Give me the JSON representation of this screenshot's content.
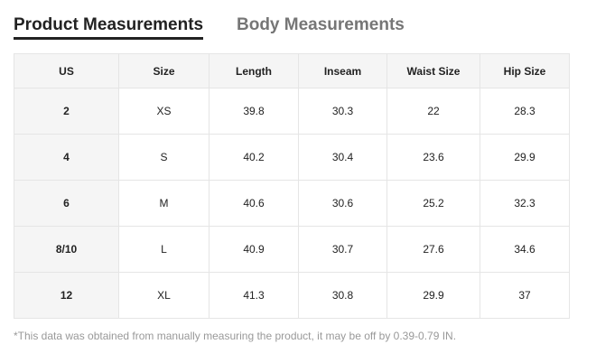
{
  "tabs": [
    {
      "label": "Product Measurements",
      "active": true
    },
    {
      "label": "Body Measurements",
      "active": false
    }
  ],
  "table": {
    "headers": [
      "US",
      "Size",
      "Length",
      "Inseam",
      "Waist Size",
      "Hip Size"
    ],
    "rows": [
      [
        "2",
        "XS",
        "39.8",
        "30.3",
        "22",
        "28.3"
      ],
      [
        "4",
        "S",
        "40.2",
        "30.4",
        "23.6",
        "29.9"
      ],
      [
        "6",
        "M",
        "40.6",
        "30.6",
        "25.2",
        "32.3"
      ],
      [
        "8/10",
        "L",
        "40.9",
        "30.7",
        "27.6",
        "34.6"
      ],
      [
        "12",
        "XL",
        "41.3",
        "30.8",
        "29.9",
        "37"
      ]
    ]
  },
  "note": "*This data was obtained from manually measuring the product, it may be off by 0.39-0.79 IN."
}
